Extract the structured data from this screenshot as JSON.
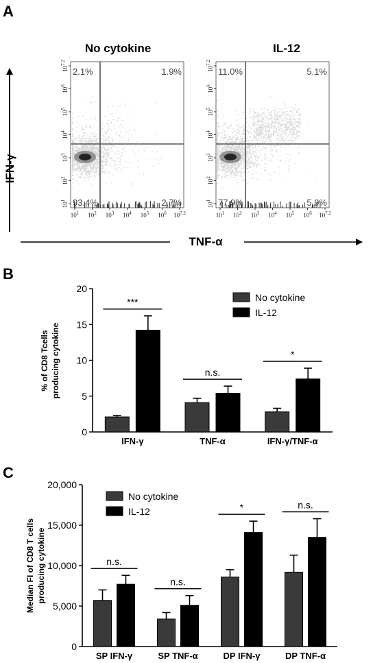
{
  "panel_labels": {
    "a": "A",
    "b": "B",
    "c": "C"
  },
  "colors": {
    "no_cytokine": "#3a3a3a",
    "il12": "#000000",
    "flow_axis": "#666666",
    "flow_gate": "#555555"
  },
  "chart_data": [
    {
      "type": "scatter",
      "subtype": "flow-cytometry-density",
      "titles": [
        "No cytokine",
        "IL-12"
      ],
      "ylabel": "IFN-γ",
      "xlabel": "TNF-α",
      "x_ticks": [
        "10^1",
        "10^2",
        "10^3",
        "10^4",
        "10^5",
        "10^6",
        "10^7.2"
      ],
      "y_ticks": [
        "10^1",
        "10^2",
        "10^3",
        "10^4",
        "10^5",
        "10^6",
        "10^7.2"
      ],
      "quadrant_gate": {
        "x": "10^3.3",
        "y": "10^3.8"
      },
      "plots": [
        {
          "title": "No cytokine",
          "quadrants": {
            "upper_left": "2.1%",
            "upper_right": "1.9%",
            "lower_left": "93.4%",
            "lower_right": "2.7%"
          }
        },
        {
          "title": "IL-12",
          "quadrants": {
            "upper_left": "11.0%",
            "upper_right": "5.1%",
            "lower_left": "77.9%",
            "lower_right": "5.9%"
          }
        }
      ]
    },
    {
      "type": "bar",
      "categories": [
        "IFN-γ",
        "TNF-α",
        "IFN-γ/TNF-α"
      ],
      "ylabel": "% of CD8 Tcells producing cytokine",
      "ylim": [
        0,
        20
      ],
      "yticks": [
        "0",
        "5",
        "10",
        "15",
        "20"
      ],
      "series": [
        {
          "name": "No cytokine",
          "values": [
            2.1,
            4.1,
            2.8
          ],
          "errors": [
            0.2,
            0.6,
            0.5
          ]
        },
        {
          "name": "IL-12",
          "values": [
            14.2,
            5.4,
            7.4
          ],
          "errors": [
            2.0,
            1.0,
            1.5
          ]
        }
      ],
      "significance": [
        "***",
        "n.s.",
        "*"
      ],
      "legend": "top-right"
    },
    {
      "type": "bar",
      "categories": [
        "SP IFN-γ",
        "SP TNF-α",
        "DP IFN-γ",
        "DP TNF-α"
      ],
      "ylabel": "Median FI of CD8 T cells producing cytokine",
      "ylim": [
        0,
        20000
      ],
      "yticks": [
        "0",
        "5,000",
        "10,000",
        "15,000",
        "20,000"
      ],
      "series": [
        {
          "name": "No cytokine",
          "values": [
            5700,
            3400,
            8600,
            9200
          ],
          "errors": [
            1300,
            800,
            900,
            2100
          ]
        },
        {
          "name": "IL-12",
          "values": [
            7700,
            5100,
            14100,
            13500
          ],
          "errors": [
            1100,
            1200,
            1400,
            2300
          ]
        }
      ],
      "significance": [
        "n.s.",
        "n.s.",
        "*",
        "n.s."
      ],
      "legend": "top-left"
    }
  ]
}
